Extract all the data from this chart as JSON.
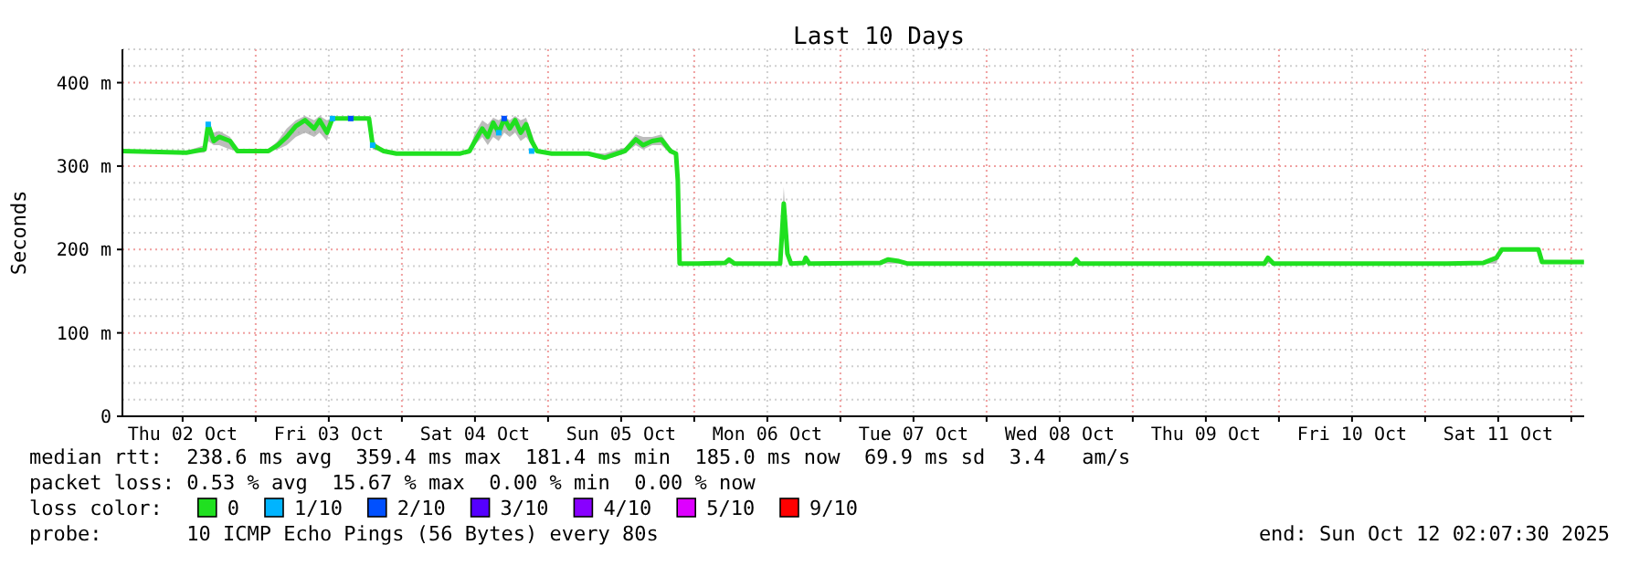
{
  "chart_data": {
    "type": "line",
    "title": "Last 10 Days",
    "ylabel": "Seconds",
    "legend_title": "loss color:",
    "legend": "bottom",
    "grid": true,
    "marker": "none",
    "line_style": "solid",
    "xlim": [
      "2025-10-02T02:07",
      "2025-10-12T02:07"
    ],
    "xticks": [
      {
        "value": "2025-10-02T12:00",
        "label": "Thu 02 Oct"
      },
      {
        "value": "2025-10-03T00:00",
        "label": null
      },
      {
        "value": "2025-10-03T12:00",
        "label": "Fri 03 Oct"
      },
      {
        "value": "2025-10-04T00:00",
        "label": null
      },
      {
        "value": "2025-10-04T12:00",
        "label": "Sat 04 Oct"
      },
      {
        "value": "2025-10-05T00:00",
        "label": null
      },
      {
        "value": "2025-10-05T12:00",
        "label": "Sun 05 Oct"
      },
      {
        "value": "2025-10-06T00:00",
        "label": null
      },
      {
        "value": "2025-10-06T12:00",
        "label": "Mon 06 Oct"
      },
      {
        "value": "2025-10-07T00:00",
        "label": null
      },
      {
        "value": "2025-10-07T12:00",
        "label": "Tue 07 Oct"
      },
      {
        "value": "2025-10-08T00:00",
        "label": null
      },
      {
        "value": "2025-10-08T12:00",
        "label": "Wed 08 Oct"
      },
      {
        "value": "2025-10-09T00:00",
        "label": null
      },
      {
        "value": "2025-10-09T12:00",
        "label": "Thu 09 Oct"
      },
      {
        "value": "2025-10-10T00:00",
        "label": null
      },
      {
        "value": "2025-10-10T12:00",
        "label": "Fri 10 Oct"
      },
      {
        "value": "2025-10-11T00:00",
        "label": null
      },
      {
        "value": "2025-10-11T12:00",
        "label": "Sat 11 Oct"
      },
      {
        "value": "2025-10-12T00:00",
        "label": null
      }
    ],
    "ylim": [
      0,
      440
    ],
    "yticks": [
      0,
      {
        "value": 20,
        "label": null
      },
      {
        "value": 40,
        "label": null
      },
      {
        "value": 60,
        "label": null
      },
      {
        "value": 80,
        "label": null
      },
      {
        "value": 100,
        "label": "100 m"
      },
      {
        "value": 120,
        "label": null
      },
      {
        "value": 140,
        "label": null
      },
      {
        "value": 160,
        "label": null
      },
      {
        "value": 180,
        "label": null
      },
      {
        "value": 200,
        "label": "200 m"
      },
      {
        "value": 220,
        "label": null
      },
      {
        "value": 240,
        "label": null
      },
      {
        "value": 260,
        "label": null
      },
      {
        "value": 280,
        "label": null
      },
      {
        "value": 300,
        "label": "300 m"
      },
      {
        "value": 320,
        "label": null
      },
      {
        "value": 340,
        "label": null
      },
      {
        "value": 360,
        "label": null
      },
      {
        "value": 380,
        "label": null
      },
      {
        "value": 400,
        "label": "400 m"
      },
      {
        "value": 420,
        "label": null
      },
      {
        "value": 440,
        "label": null
      }
    ],
    "series": [
      {
        "name": "0",
        "color": "#20e020",
        "x": [
          "2025-10-02T02:10",
          "2025-10-02T12:36",
          "2025-10-02T15:36",
          "2025-10-02T16:12",
          "2025-10-02T17:06",
          "2025-10-02T18:00",
          "2025-10-02T19:48",
          "2025-10-02T21:00",
          "2025-10-03T00:00",
          "2025-10-03T02:06",
          "2025-10-03T03:36",
          "2025-10-03T05:06",
          "2025-10-03T06:36",
          "2025-10-03T08:06",
          "2025-10-03T09:36",
          "2025-10-03T10:30",
          "2025-10-03T11:42",
          "2025-10-03T12:36",
          "2025-10-03T15:36",
          "2025-10-03T18:36",
          "2025-10-03T19:12",
          "2025-10-03T21:00",
          "2025-10-03T23:06",
          "2025-10-04T09:36",
          "2025-10-04T11:06",
          "2025-10-04T12:00",
          "2025-10-04T13:12",
          "2025-10-04T14:06",
          "2025-10-04T15:00",
          "2025-10-04T15:54",
          "2025-10-04T16:48",
          "2025-10-04T17:42",
          "2025-10-04T18:36",
          "2025-10-04T19:30",
          "2025-10-04T20:24",
          "2025-10-04T21:18",
          "2025-10-04T22:12",
          "2025-10-05T00:36",
          "2025-10-05T06:36",
          "2025-10-05T09:18",
          "2025-10-05T10:30",
          "2025-10-05T12:36",
          "2025-10-05T14:24",
          "2025-10-05T15:36",
          "2025-10-05T17:06",
          "2025-10-05T18:36",
          "2025-10-05T20:06",
          "2025-10-05T21:00",
          "2025-10-05T21:18",
          "2025-10-05T21:36",
          "2025-10-06T00:36",
          "2025-10-06T05:06",
          "2025-10-06T05:42",
          "2025-10-06T06:36",
          "2025-10-06T14:06",
          "2025-10-06T14:24",
          "2025-10-06T14:42",
          "2025-10-06T15:18",
          "2025-10-06T15:54",
          "2025-10-06T18:00",
          "2025-10-06T18:18",
          "2025-10-06T18:54",
          "2025-10-07T06:36",
          "2025-10-07T07:48",
          "2025-10-07T09:36",
          "2025-10-07T11:06",
          "2025-10-08T14:06",
          "2025-10-08T14:42",
          "2025-10-08T15:18",
          "2025-10-09T21:36",
          "2025-10-09T22:12",
          "2025-10-09T23:06",
          "2025-10-11T03:36",
          "2025-10-11T09:36",
          "2025-10-11T11:42",
          "2025-10-11T12:36",
          "2025-10-11T18:36",
          "2025-10-11T19:12",
          "2025-10-12T02:05"
        ],
        "values": [
          318,
          316,
          320,
          350,
          330,
          335,
          330,
          318,
          318,
          318,
          325,
          335,
          348,
          355,
          345,
          355,
          340,
          357,
          357,
          357,
          325,
          318,
          315,
          315,
          318,
          330,
          345,
          335,
          352,
          340,
          357,
          345,
          355,
          340,
          350,
          330,
          318,
          315,
          315,
          310,
          313,
          318,
          332,
          325,
          330,
          332,
          318,
          315,
          283,
          183,
          183,
          184,
          188,
          183,
          183,
          218,
          255,
          195,
          183,
          184,
          190,
          183,
          184,
          188,
          186,
          183,
          183,
          188,
          183,
          183,
          190,
          183,
          183,
          184,
          190,
          200,
          200,
          185,
          185
        ],
        "lower": [
          318,
          316,
          316,
          330,
          325,
          325,
          320,
          318,
          318,
          318,
          320,
          325,
          335,
          340,
          335,
          340,
          330,
          357,
          357,
          357,
          320,
          318,
          315,
          315,
          315,
          325,
          335,
          325,
          335,
          330,
          340,
          335,
          340,
          330,
          335,
          325,
          318,
          315,
          315,
          310,
          310,
          315,
          325,
          320,
          325,
          325,
          315,
          315,
          283,
          183,
          183,
          183,
          183,
          183,
          183,
          210,
          240,
          190,
          183,
          183,
          183,
          183,
          183,
          183,
          183,
          183,
          183,
          183,
          183,
          183,
          183,
          183,
          183,
          183,
          183,
          200,
          200,
          185,
          185
        ],
        "upper": [
          318,
          318,
          325,
          352,
          340,
          342,
          335,
          320,
          318,
          320,
          330,
          345,
          355,
          360,
          355,
          360,
          355,
          358,
          358,
          358,
          330,
          320,
          316,
          316,
          320,
          340,
          355,
          350,
          358,
          355,
          360,
          355,
          360,
          355,
          358,
          340,
          320,
          316,
          316,
          315,
          318,
          322,
          338,
          335,
          335,
          338,
          322,
          316,
          283,
          183,
          184,
          186,
          190,
          184,
          184,
          225,
          275,
          200,
          184,
          186,
          192,
          184,
          186,
          190,
          188,
          184,
          184,
          190,
          184,
          184,
          192,
          184,
          184,
          186,
          192,
          201,
          201,
          186,
          186
        ]
      },
      {
        "name": "1/10",
        "color": "#00b4ff",
        "type": "scatter",
        "marker": "square",
        "x": [
          "2025-10-02T16:12",
          "2025-10-03T12:36",
          "2025-10-03T19:12",
          "2025-10-04T15:54",
          "2025-10-04T21:18"
        ],
        "values": [
          350,
          357,
          325,
          340,
          318
        ]
      },
      {
        "name": "2/10",
        "color": "#0050ff",
        "type": "scatter",
        "marker": "square",
        "x": [
          "2025-10-03T15:36",
          "2025-10-04T16:48"
        ],
        "values": [
          357,
          357
        ]
      },
      {
        "name": "3/10",
        "color": "#5500ff",
        "type": "scatter"
      },
      {
        "name": "4/10",
        "color": "#8800ff",
        "type": "scatter"
      },
      {
        "name": "5/10",
        "color": "#dd00ff",
        "type": "scatter"
      },
      {
        "name": "9/10",
        "color": "#ff0000",
        "type": "scatter"
      }
    ],
    "annotations": [
      "median rtt:  238.6 ms avg  359.4 ms max  181.4 ms min  185.0 ms now  69.9 ms sd  3.4   am/s",
      "packet loss: 0.53 % avg  15.67 % max  0.00 % min  0.00 % now",
      "probe:       10 ICMP Echo Pings (56 Bytes) every 80s",
      "end: Sun Oct 12 02:07:30 2025"
    ]
  }
}
